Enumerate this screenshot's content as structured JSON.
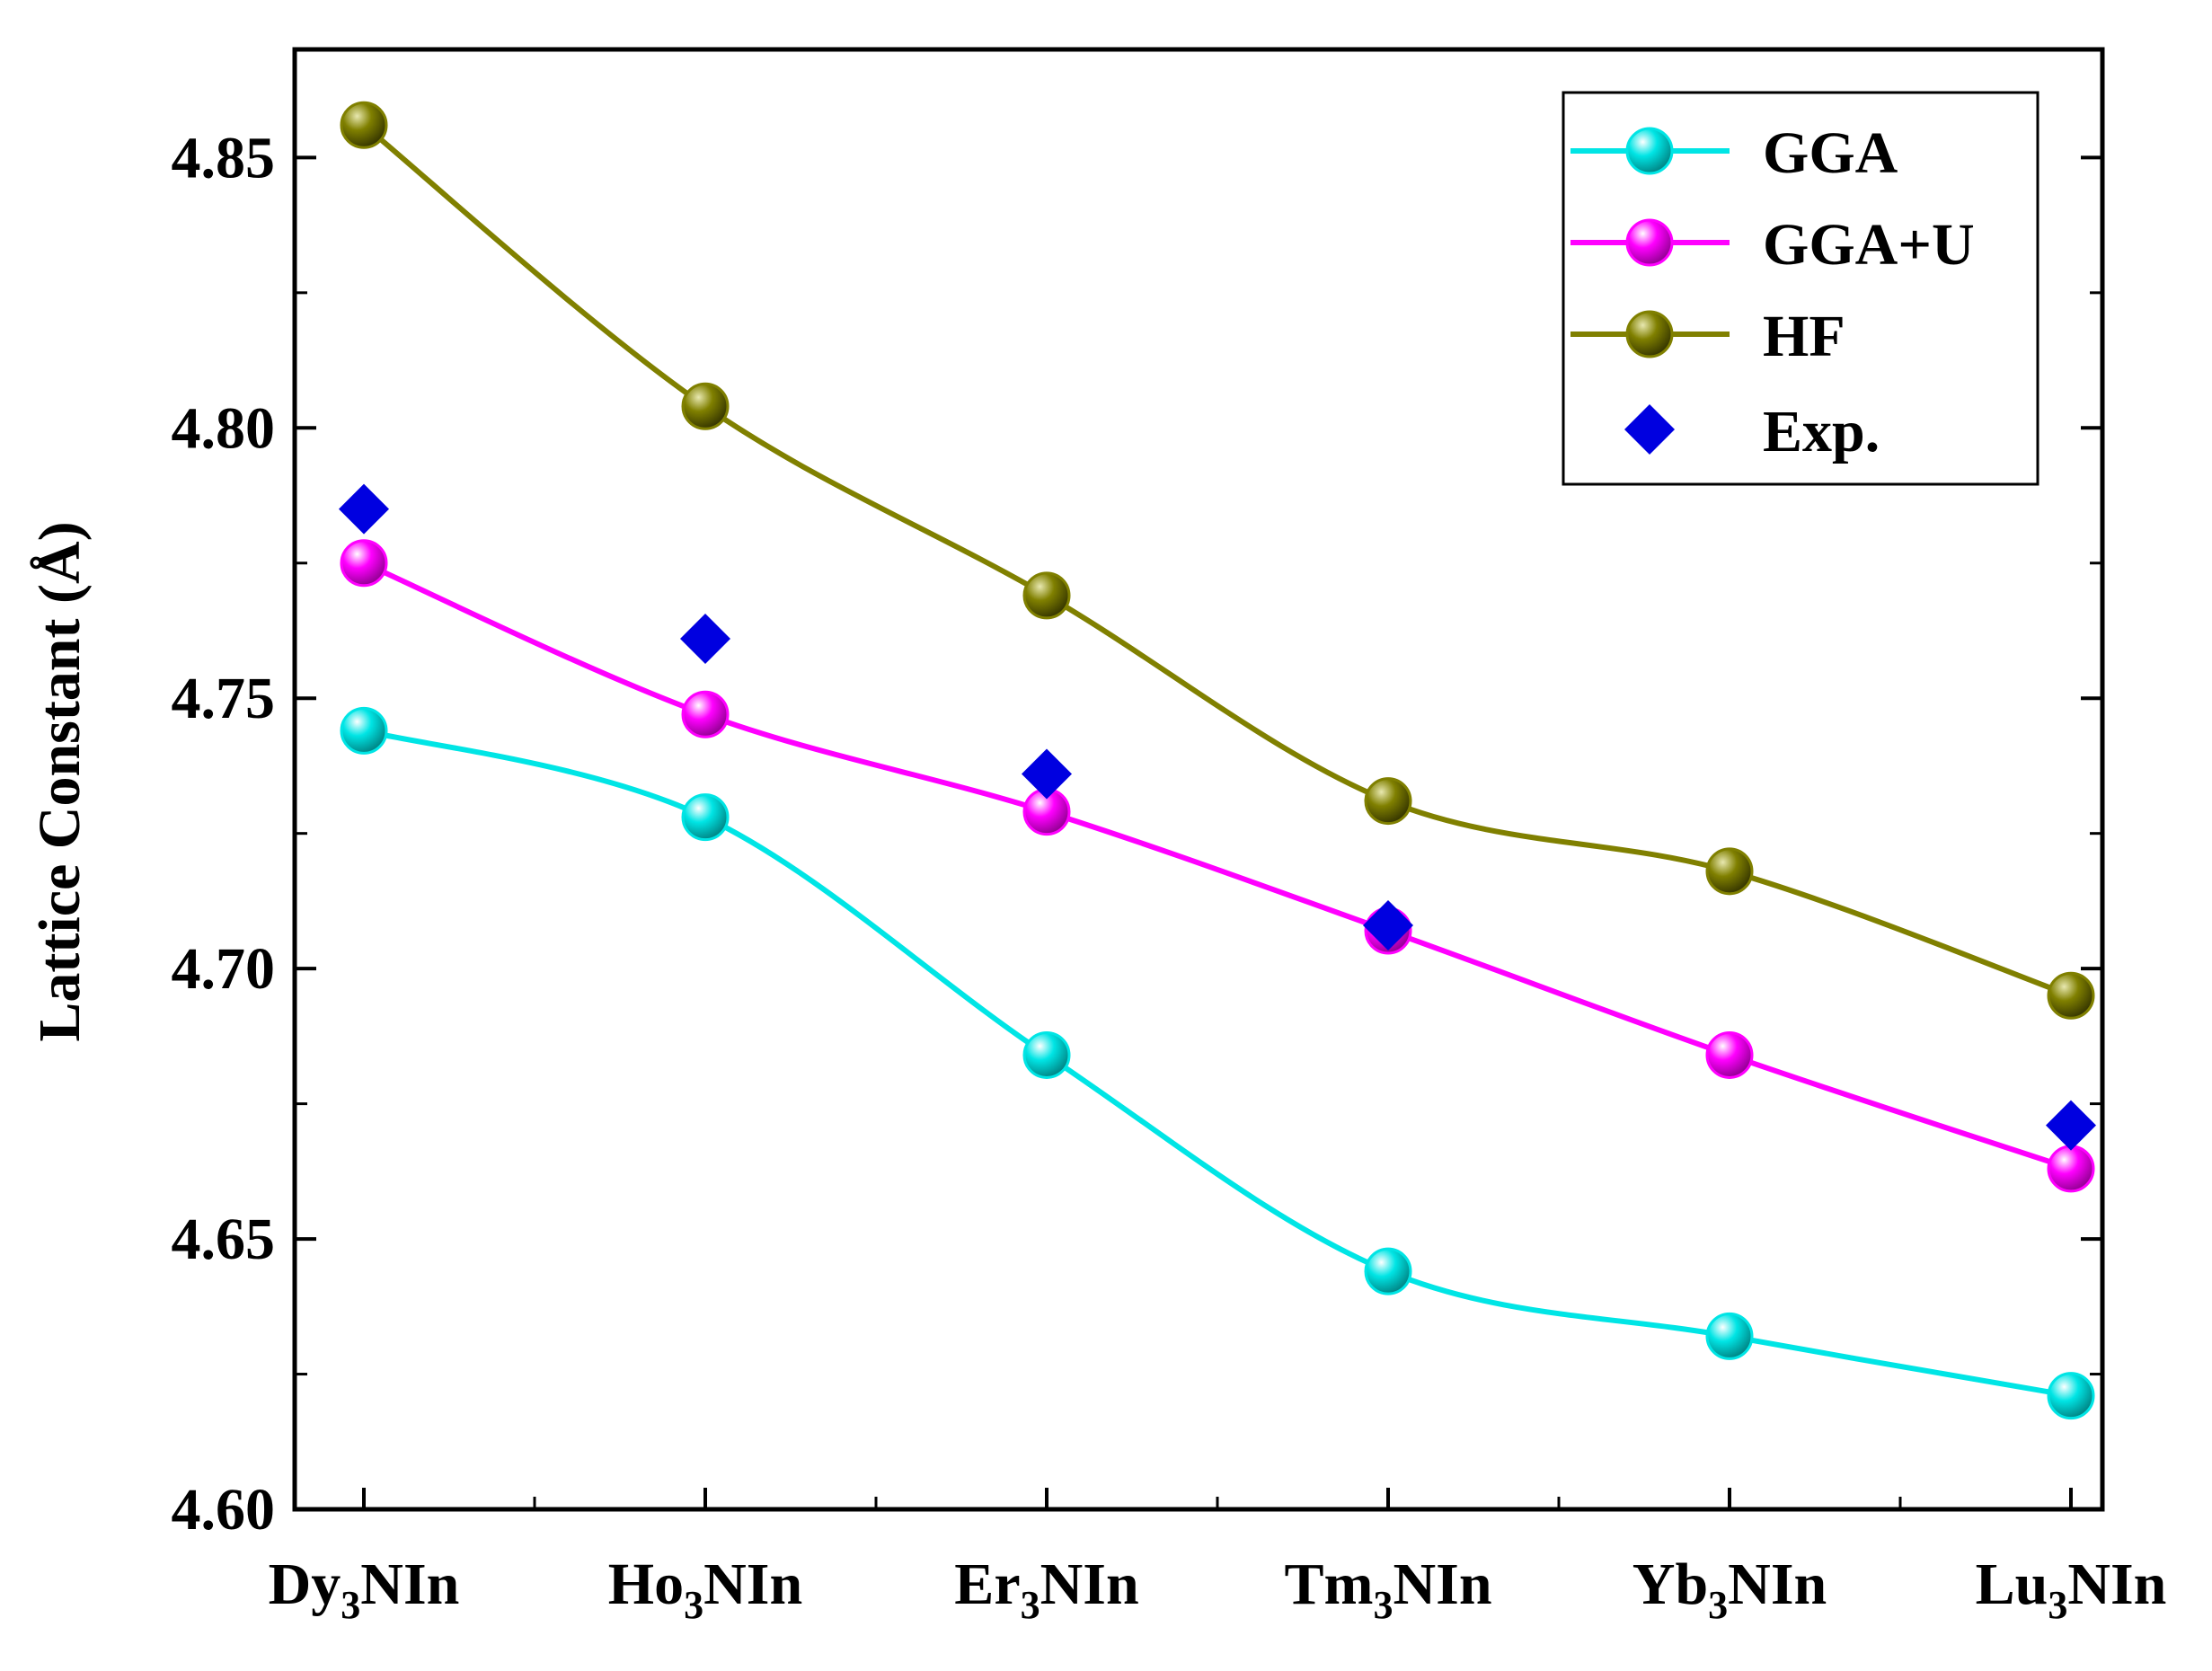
{
  "chart_data": {
    "type": "line",
    "title": "",
    "xlabel": "",
    "ylabel": "Lattice Constant (Å)",
    "ylim": [
      4.6,
      4.87
    ],
    "yticks": [
      "4.60",
      "4.65",
      "4.70",
      "4.75",
      "4.80",
      "4.85"
    ],
    "categories": [
      {
        "base": "Dy",
        "sub": "3",
        "rest": "NIn"
      },
      {
        "base": "Ho",
        "sub": "3",
        "rest": "NIn"
      },
      {
        "base": "Er",
        "sub": "3",
        "rest": "NIn"
      },
      {
        "base": "Tm",
        "sub": "3",
        "rest": "NIn"
      },
      {
        "base": "Yb",
        "sub": "3",
        "rest": "NIn"
      },
      {
        "base": "Lu",
        "sub": "3",
        "rest": "NIn"
      }
    ],
    "legend_position": "top-right",
    "series": [
      {
        "name": "GGA",
        "color": "#00e5e5",
        "marker": "sphere",
        "line": true,
        "values": [
          4.744,
          4.728,
          4.684,
          4.644,
          4.632,
          4.621
        ]
      },
      {
        "name": "GGA+U",
        "color": "#ff00ff",
        "marker": "sphere",
        "line": true,
        "values": [
          4.775,
          4.747,
          4.729,
          4.707,
          4.684,
          4.663
        ]
      },
      {
        "name": "HF",
        "color": "#808000",
        "marker": "sphere",
        "line": true,
        "values": [
          4.856,
          4.804,
          4.769,
          4.731,
          4.718,
          4.695
        ]
      },
      {
        "name": "Exp.",
        "color": "#0000e0",
        "marker": "diamond",
        "line": false,
        "values": [
          4.785,
          4.761,
          4.736,
          4.708,
          null,
          4.671
        ]
      }
    ]
  }
}
